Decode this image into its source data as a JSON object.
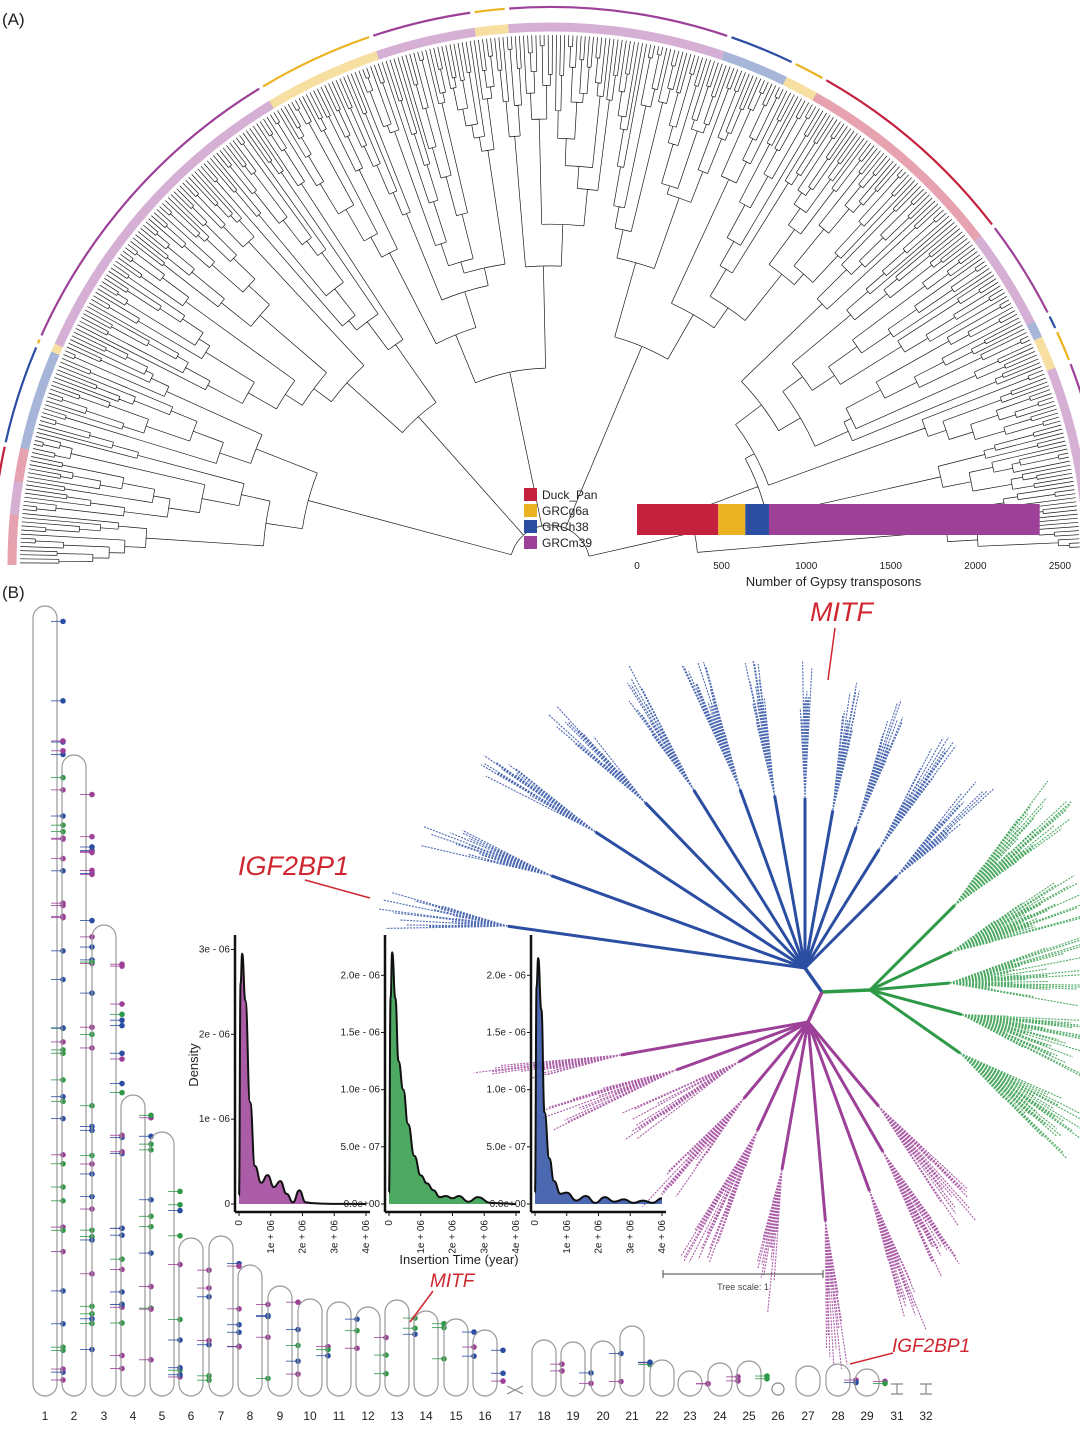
{
  "figure": {
    "panel_a_label": "(A)",
    "panel_b_label": "(B)"
  },
  "colors": {
    "duck": "#c4213f",
    "chicken": "#ebb221",
    "human": "#2b4ea3",
    "mouse": "#9c4098",
    "green": "#2e9a47",
    "tree_line": "#1a1a1a",
    "gene": "#d0262f"
  },
  "panel_a": {
    "legend": [
      {
        "label": "Duck_Pan",
        "color": "#c4213f"
      },
      {
        "label": "GRCg6a",
        "color": "#ebb221"
      },
      {
        "label": "GRCh38",
        "color": "#2b4ea3"
      },
      {
        "label": "GRCm39",
        "color": "#9c4098"
      }
    ]
  },
  "chart_data": [
    {
      "type": "bar",
      "orientation": "horizontal-stacked",
      "title": "",
      "xlabel": "Number of Gypsy transposons",
      "xlim": [
        0,
        2500
      ],
      "xticks": [
        0,
        500,
        1000,
        1500,
        2000,
        2500
      ],
      "series": [
        {
          "name": "Duck_Pan",
          "value": 480,
          "color": "#c4213f"
        },
        {
          "name": "GRCg6a",
          "value": 160,
          "color": "#ebb221"
        },
        {
          "name": "GRCh38",
          "value": 140,
          "color": "#2b4ea3"
        },
        {
          "name": "GRCm39",
          "value": 1600,
          "color": "#9c4098"
        }
      ]
    },
    {
      "type": "area",
      "title": "",
      "xlabel": "Insertion Time (year)",
      "ylabel": "Density",
      "panels": [
        {
          "color": "#9c4098",
          "xlim": [
            0,
            4000000
          ],
          "xticks": [
            "0",
            "1e + 06",
            "2e + 06",
            "3e + 06",
            "4e + 06"
          ],
          "ylim": [
            0,
            3.1e-06
          ],
          "yticks": [
            "0",
            "1e - 06",
            "2e - 06",
            "3e - 06"
          ],
          "ytick_values": [
            0,
            1e-06,
            2e-06,
            3e-06
          ],
          "x": [
            0,
            50000,
            100000,
            200000,
            350000,
            500000,
            700000,
            900000,
            1100000,
            1300000,
            1500000,
            1700000,
            1900000,
            2100000,
            2300000,
            2600000,
            3000000,
            3500000,
            4000000
          ],
          "y": [
            1e-07,
            2.6e-06,
            2.95e-06,
            2.4e-06,
            1.2e-06,
            4.5e-07,
            2.5e-07,
            3.4e-07,
            2e-07,
            2.7e-07,
            1.2e-07,
            2e-08,
            1.6e-07,
            2e-08,
            1e-08,
            5e-09,
            2e-09,
            1e-09,
            0
          ]
        },
        {
          "color": "#2e9a47",
          "xlim": [
            0,
            4000000
          ],
          "xticks": [
            "0",
            "1e + 06",
            "2e + 06",
            "3e + 06",
            "4e + 06"
          ],
          "ylim": [
            0,
            2.3e-06
          ],
          "yticks": [
            "0.0e+00",
            "5.0e - 07",
            "1.0e - 06",
            "1.5e - 06",
            "2.0e - 06"
          ],
          "ytick_values": [
            0,
            5e-07,
            1e-06,
            1.5e-06,
            2e-06
          ],
          "x": [
            0,
            50000,
            100000,
            200000,
            300000,
            450000,
            600000,
            800000,
            1000000,
            1200000,
            1400000,
            1600000,
            1800000,
            2000000,
            2200000,
            2500000,
            2800000,
            3200000,
            3600000,
            4000000
          ],
          "y": [
            1e-07,
            1.8e-06,
            2.2e-06,
            1.8e-06,
            1.25e-06,
            1e-06,
            7e-07,
            4.2e-07,
            2.5e-07,
            1.8e-07,
            1.2e-07,
            6e-08,
            7e-08,
            5e-08,
            7e-08,
            2e-08,
            6e-08,
            1e-08,
            5e-09,
            0
          ]
        },
        {
          "color": "#2b4ea3",
          "xlim": [
            0,
            4000000
          ],
          "xticks": [
            "0",
            "1e + 06",
            "2e + 06",
            "3e + 06",
            "4e + 06"
          ],
          "ylim": [
            0,
            2.3e-06
          ],
          "yticks": [
            "0.0e+00",
            "5.0e - 07",
            "1.0e - 06",
            "1.5e - 06",
            "2.0e - 06"
          ],
          "ytick_values": [
            0,
            5e-07,
            1e-06,
            1.5e-06,
            2e-06
          ],
          "x": [
            0,
            50000,
            100000,
            200000,
            300000,
            450000,
            600000,
            800000,
            1000000,
            1300000,
            1600000,
            1900000,
            2200000,
            2500000,
            2800000,
            3100000,
            3400000,
            3700000,
            4000000
          ],
          "y": [
            1e-07,
            1.9e-06,
            2.15e-06,
            1.7e-06,
            8e-07,
            4e-07,
            2e-07,
            9e-08,
            1e-07,
            3e-08,
            7e-08,
            1e-08,
            6e-08,
            2e-08,
            4e-08,
            1e-08,
            3e-08,
            1e-08,
            5e-08
          ]
        }
      ]
    }
  ],
  "panel_b": {
    "tree_scale_label": "Tree scale: 1",
    "gene_labels": {
      "mitf_tree": "MITF",
      "igf2bp1_tree": "IGF2BP1",
      "mitf_chrom": "MITF",
      "igf2bp1_chrom": "IGF2BP1"
    },
    "chromosomes": [
      "1",
      "2",
      "3",
      "4",
      "5",
      "6",
      "7",
      "8",
      "9",
      "10",
      "11",
      "12",
      "13",
      "14",
      "15",
      "16",
      "17",
      "18",
      "19",
      "20",
      "21",
      "22",
      "23",
      "24",
      "25",
      "26",
      "27",
      "28",
      "29",
      "31",
      "32"
    ]
  }
}
